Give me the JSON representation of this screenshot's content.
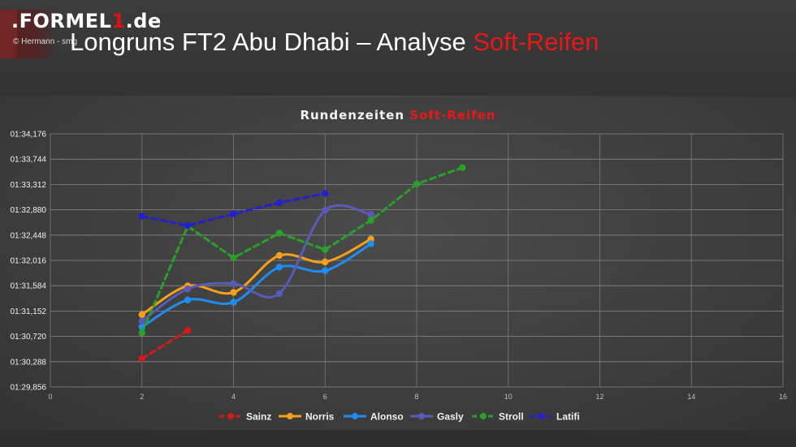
{
  "header": {
    "logo_main": ".FORMEL",
    "logo_one": "1",
    "logo_tail": ".de",
    "credit": "© Hermann - smg",
    "headline_main": "Longruns FT2 Abu Dhabi – Analyse ",
    "headline_accent": "Soft-Reifen"
  },
  "colors": {
    "accent": "#e81818",
    "background": "#3a3a3a"
  },
  "chart_data": {
    "type": "line",
    "title": "Rundenzeiten ",
    "title_accent": "Soft-Reifen",
    "xlim": [
      0,
      16
    ],
    "x_ticks": [
      "0",
      "2",
      "4",
      "6",
      "8",
      "10",
      "12",
      "14",
      "16"
    ],
    "ylim": [
      89.856,
      94.176
    ],
    "y_ticks": [
      "01:29,856",
      "01:30,288",
      "01:30,720",
      "01:31,152",
      "01:31,584",
      "01:32,016",
      "01:32,448",
      "01:32,880",
      "01:33,312",
      "01:33,744",
      "01:34,176"
    ],
    "grid": true,
    "legend": "bottom",
    "series": [
      {
        "name": "Sainz",
        "color": "#d41a1a",
        "dashed": true,
        "smooth": false,
        "x": [
          2,
          3
        ],
        "y": [
          90.34,
          90.82
        ]
      },
      {
        "name": "Norris",
        "color": "#f5a01a",
        "dashed": false,
        "smooth": true,
        "x": [
          2,
          3,
          4,
          5,
          6,
          7
        ],
        "y": [
          91.09,
          91.58,
          91.47,
          92.1,
          91.99,
          92.38
        ]
      },
      {
        "name": "Alonso",
        "color": "#1e8cf0",
        "dashed": false,
        "smooth": true,
        "x": [
          2,
          3,
          4,
          5,
          6,
          7
        ],
        "y": [
          90.88,
          91.34,
          91.3,
          91.9,
          91.84,
          92.3
        ]
      },
      {
        "name": "Gasly",
        "color": "#5a5ab8",
        "dashed": false,
        "smooth": true,
        "x": [
          2,
          3,
          4,
          5,
          6,
          7
        ],
        "y": [
          90.98,
          91.53,
          91.62,
          91.45,
          92.87,
          92.8
        ]
      },
      {
        "name": "Stroll",
        "color": "#2aa02a",
        "dashed": true,
        "smooth": false,
        "x": [
          2,
          3,
          4,
          5,
          6,
          7,
          8,
          9
        ],
        "y": [
          90.78,
          92.6,
          92.06,
          92.48,
          92.2,
          92.7,
          93.32,
          93.6
        ]
      },
      {
        "name": "Latifi",
        "color": "#2020d0",
        "dashed": true,
        "smooth": false,
        "x": [
          2,
          3,
          4,
          5,
          6
        ],
        "y": [
          92.77,
          92.61,
          92.81,
          93.0,
          93.16
        ]
      }
    ]
  }
}
